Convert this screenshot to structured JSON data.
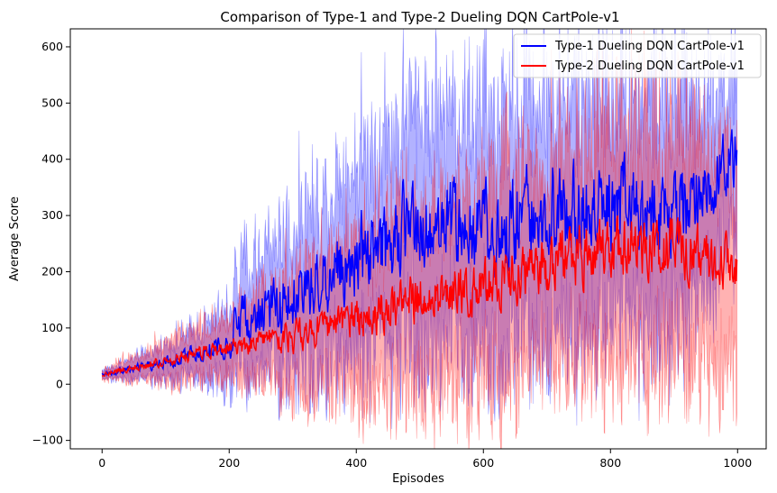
{
  "chart_data": {
    "type": "line",
    "title": "Comparison of Type-1 and Type-2 Dueling DQN CartPole-v1",
    "xlabel": "Episodes",
    "ylabel": "Average Score",
    "xlim": [
      -50,
      1045
    ],
    "ylim": [
      -115,
      632
    ],
    "xticks": [
      0,
      200,
      400,
      600,
      800,
      1000
    ],
    "yticks": [
      -100,
      0,
      100,
      200,
      300,
      400,
      500,
      600
    ],
    "grid": false,
    "legend": "top-right",
    "band_opacity": 0.3,
    "series": [
      {
        "name": "Type-1 Dueling DQN CartPole-v1",
        "color": "#0000ff",
        "keypoints": [
          {
            "x": 0,
            "mean": 18,
            "spread": 8,
            "noise": 6
          },
          {
            "x": 50,
            "mean": 28,
            "spread": 20,
            "noise": 10
          },
          {
            "x": 100,
            "mean": 38,
            "spread": 35,
            "noise": 15
          },
          {
            "x": 150,
            "mean": 55,
            "spread": 50,
            "noise": 25
          },
          {
            "x": 200,
            "mean": 70,
            "spread": 70,
            "noise": 35
          },
          {
            "x": 210,
            "mean": 110,
            "spread": 100,
            "noise": 60
          },
          {
            "x": 300,
            "mean": 150,
            "spread": 150,
            "noise": 80
          },
          {
            "x": 400,
            "mean": 230,
            "spread": 200,
            "noise": 110
          },
          {
            "x": 500,
            "mean": 290,
            "spread": 230,
            "noise": 120
          },
          {
            "x": 600,
            "mean": 270,
            "spread": 230,
            "noise": 120
          },
          {
            "x": 700,
            "mean": 310,
            "spread": 240,
            "noise": 120
          },
          {
            "x": 800,
            "mean": 320,
            "spread": 240,
            "noise": 120
          },
          {
            "x": 900,
            "mean": 300,
            "spread": 230,
            "noise": 120
          },
          {
            "x": 1000,
            "mean": 410,
            "spread": 160,
            "noise": 80
          }
        ]
      },
      {
        "name": "Type-2 Dueling DQN CartPole-v1",
        "color": "#ff0000",
        "keypoints": [
          {
            "x": 0,
            "mean": 18,
            "spread": 8,
            "noise": 5
          },
          {
            "x": 50,
            "mean": 30,
            "spread": 25,
            "noise": 10
          },
          {
            "x": 100,
            "mean": 42,
            "spread": 40,
            "noise": 15
          },
          {
            "x": 150,
            "mean": 55,
            "spread": 55,
            "noise": 18
          },
          {
            "x": 200,
            "mean": 62,
            "spread": 60,
            "noise": 22
          },
          {
            "x": 300,
            "mean": 85,
            "spread": 110,
            "noise": 40
          },
          {
            "x": 400,
            "mean": 120,
            "spread": 150,
            "noise": 55
          },
          {
            "x": 500,
            "mean": 150,
            "spread": 190,
            "noise": 65
          },
          {
            "x": 600,
            "mean": 175,
            "spread": 200,
            "noise": 70
          },
          {
            "x": 700,
            "mean": 215,
            "spread": 220,
            "noise": 75
          },
          {
            "x": 800,
            "mean": 240,
            "spread": 230,
            "noise": 80
          },
          {
            "x": 900,
            "mean": 240,
            "spread": 230,
            "noise": 80
          },
          {
            "x": 1000,
            "mean": 210,
            "spread": 220,
            "noise": 70
          }
        ]
      }
    ],
    "n_points": 1000
  }
}
